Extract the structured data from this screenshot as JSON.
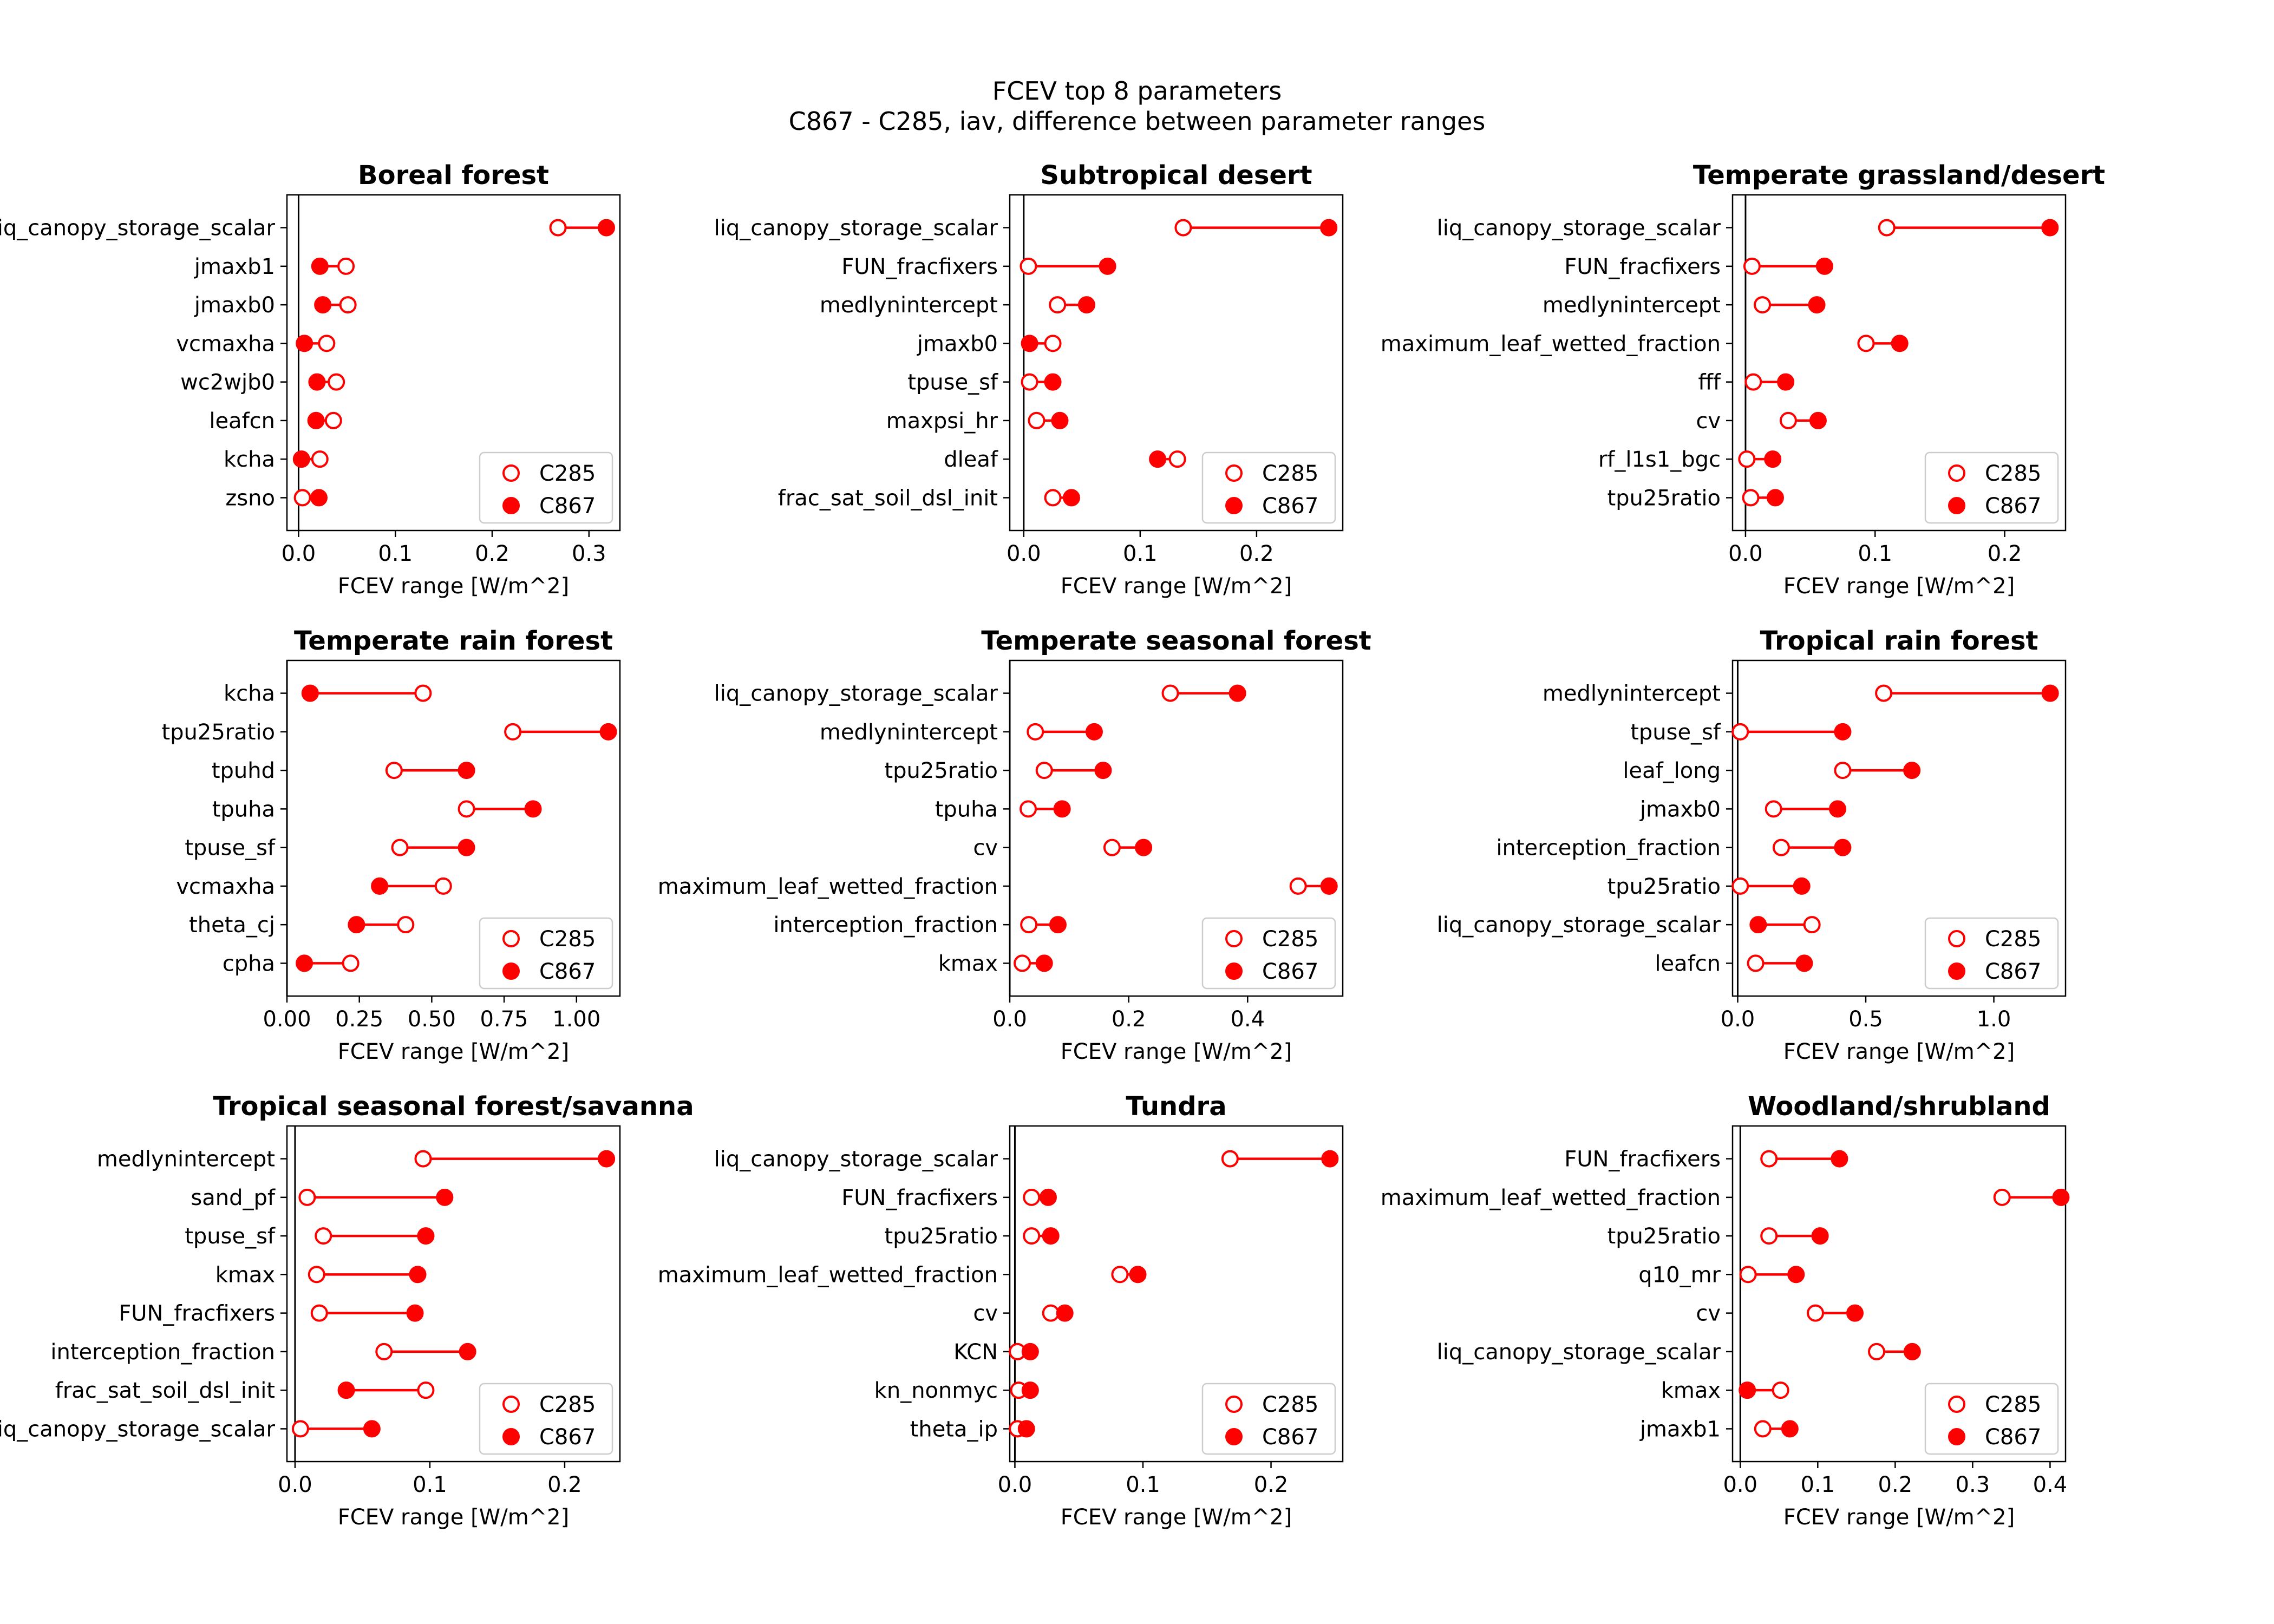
{
  "figure": {
    "title_line1": "FCEV top 8 parameters",
    "title_line2": "C867 - C285, iav, difference between parameter ranges",
    "marker_color": "#ff0000"
  },
  "chart_data": [
    {
      "type": "scatter",
      "title": "Boreal forest",
      "xlabel": "FCEV range [W/m^2]",
      "xlim": [
        -0.012,
        0.332
      ],
      "xticks": [
        0.0,
        0.1,
        0.2,
        0.3
      ],
      "xtick_labels": [
        "0.0",
        "0.1",
        "0.2",
        "0.3"
      ],
      "legend": [
        "C285",
        "C867"
      ],
      "legend_position": "lower right",
      "categories": [
        "liq_canopy_storage_scalar",
        "jmaxb1",
        "jmaxb0",
        "vcmaxha",
        "wc2wjb0",
        "leafcn",
        "kcha",
        "zsno"
      ],
      "series": [
        {
          "name": "C285",
          "values": [
            0.268,
            0.049,
            0.051,
            0.029,
            0.039,
            0.036,
            0.022,
            0.004
          ]
        },
        {
          "name": "C867",
          "values": [
            0.318,
            0.022,
            0.025,
            0.006,
            0.019,
            0.018,
            0.003,
            0.021
          ]
        }
      ]
    },
    {
      "type": "scatter",
      "title": "Subtropical desert",
      "xlabel": "FCEV range [W/m^2]",
      "xlim": [
        -0.012,
        0.274
      ],
      "xticks": [
        0.0,
        0.1,
        0.2
      ],
      "xtick_labels": [
        "0.0",
        "0.1",
        "0.2"
      ],
      "legend": [
        "C285",
        "C867"
      ],
      "legend_position": "lower right",
      "categories": [
        "liq_canopy_storage_scalar",
        "FUN_fracfixers",
        "medlynintercept",
        "jmaxb0",
        "tpuse_sf",
        "maxpsi_hr",
        "dleaf",
        "frac_sat_soil_dsl_init"
      ],
      "series": [
        {
          "name": "C285",
          "values": [
            0.137,
            0.004,
            0.029,
            0.025,
            0.005,
            0.011,
            0.132,
            0.025
          ]
        },
        {
          "name": "C867",
          "values": [
            0.262,
            0.072,
            0.054,
            0.005,
            0.025,
            0.031,
            0.115,
            0.041
          ]
        }
      ]
    },
    {
      "type": "scatter",
      "title": "Temperate grassland/desert",
      "xlabel": "FCEV range [W/m^2]",
      "xlim": [
        -0.01,
        0.247
      ],
      "xticks": [
        0.0,
        0.1,
        0.2
      ],
      "xtick_labels": [
        "0.0",
        "0.1",
        "0.2"
      ],
      "legend": [
        "C285",
        "C867"
      ],
      "legend_position": "lower right",
      "categories": [
        "liq_canopy_storage_scalar",
        "FUN_fracfixers",
        "medlynintercept",
        "maximum_leaf_wetted_fraction",
        "fff",
        "cv",
        "rf_l1s1_bgc",
        "tpu25ratio"
      ],
      "series": [
        {
          "name": "C285",
          "values": [
            0.109,
            0.005,
            0.013,
            0.093,
            0.006,
            0.033,
            0.001,
            0.004
          ]
        },
        {
          "name": "C867",
          "values": [
            0.235,
            0.061,
            0.055,
            0.119,
            0.031,
            0.056,
            0.021,
            0.023
          ]
        }
      ]
    },
    {
      "type": "scatter",
      "title": "Temperate rain forest",
      "xlabel": "FCEV range [W/m^2]",
      "xlim": [
        0.0,
        1.15
      ],
      "xticks": [
        0.0,
        0.25,
        0.5,
        0.75,
        1.0
      ],
      "xtick_labels": [
        "0.00",
        "0.25",
        "0.50",
        "0.75",
        "1.00"
      ],
      "legend": [
        "C285",
        "C867"
      ],
      "legend_position": "lower right",
      "categories": [
        "kcha",
        "tpu25ratio",
        "tpuhd",
        "tpuha",
        "tpuse_sf",
        "vcmaxha",
        "theta_cj",
        "cpha"
      ],
      "series": [
        {
          "name": "C285",
          "values": [
            0.47,
            0.78,
            0.37,
            0.62,
            0.39,
            0.54,
            0.41,
            0.22
          ]
        },
        {
          "name": "C867",
          "values": [
            0.08,
            1.11,
            0.62,
            0.85,
            0.62,
            0.32,
            0.24,
            0.06
          ]
        }
      ]
    },
    {
      "type": "scatter",
      "title": "Temperate seasonal forest",
      "xlabel": "FCEV range [W/m^2]",
      "xlim": [
        0.0,
        0.56
      ],
      "xticks": [
        0.0,
        0.2,
        0.4
      ],
      "xtick_labels": [
        "0.0",
        "0.2",
        "0.4"
      ],
      "legend": [
        "C285",
        "C867"
      ],
      "legend_position": "lower right",
      "categories": [
        "liq_canopy_storage_scalar",
        "medlynintercept",
        "tpu25ratio",
        "tpuha",
        "cv",
        "maximum_leaf_wetted_fraction",
        "interception_fraction",
        "kmax"
      ],
      "series": [
        {
          "name": "C285",
          "values": [
            0.27,
            0.043,
            0.058,
            0.031,
            0.172,
            0.485,
            0.032,
            0.021
          ]
        },
        {
          "name": "C867",
          "values": [
            0.383,
            0.142,
            0.157,
            0.088,
            0.225,
            0.537,
            0.081,
            0.058
          ]
        }
      ]
    },
    {
      "type": "scatter",
      "title": "Tropical rain forest",
      "xlabel": "FCEV range [W/m^2]",
      "xlim": [
        -0.02,
        1.28
      ],
      "xticks": [
        0.0,
        0.5,
        1.0
      ],
      "xtick_labels": [
        "0.0",
        "0.5",
        "1.0"
      ],
      "legend": [
        "C285",
        "C867"
      ],
      "legend_position": "lower right",
      "categories": [
        "medlynintercept",
        "tpuse_sf",
        "leaf_long",
        "jmaxb0",
        "interception_fraction",
        "tpu25ratio",
        "liq_canopy_storage_scalar",
        "leafcn"
      ],
      "series": [
        {
          "name": "C285",
          "values": [
            0.57,
            0.01,
            0.41,
            0.14,
            0.17,
            0.01,
            0.29,
            0.07
          ]
        },
        {
          "name": "C867",
          "values": [
            1.22,
            0.41,
            0.68,
            0.39,
            0.41,
            0.25,
            0.08,
            0.26
          ]
        }
      ]
    },
    {
      "type": "scatter",
      "title": "Tropical seasonal forest/savanna",
      "xlabel": "FCEV range [W/m^2]",
      "xlim": [
        -0.006,
        0.241
      ],
      "xticks": [
        0.0,
        0.1,
        0.2
      ],
      "xtick_labels": [
        "0.0",
        "0.1",
        "0.2"
      ],
      "legend": [
        "C285",
        "C867"
      ],
      "legend_position": "lower right",
      "categories": [
        "medlynintercept",
        "sand_pf",
        "tpuse_sf",
        "kmax",
        "FUN_fracfixers",
        "interception_fraction",
        "frac_sat_soil_dsl_init",
        "liq_canopy_storage_scalar"
      ],
      "series": [
        {
          "name": "C285",
          "values": [
            0.095,
            0.009,
            0.021,
            0.016,
            0.018,
            0.066,
            0.097,
            0.004
          ]
        },
        {
          "name": "C867",
          "values": [
            0.231,
            0.111,
            0.097,
            0.091,
            0.089,
            0.128,
            0.038,
            0.057
          ]
        }
      ]
    },
    {
      "type": "scatter",
      "title": "Tundra",
      "xlabel": "FCEV range [W/m^2]",
      "xlim": [
        -0.004,
        0.256
      ],
      "xticks": [
        0.0,
        0.1,
        0.2
      ],
      "xtick_labels": [
        "0.0",
        "0.1",
        "0.2"
      ],
      "legend": [
        "C285",
        "C867"
      ],
      "legend_position": "lower right",
      "categories": [
        "liq_canopy_storage_scalar",
        "FUN_fracfixers",
        "tpu25ratio",
        "maximum_leaf_wetted_fraction",
        "cv",
        "KCN",
        "kn_nonmyc",
        "theta_ip"
      ],
      "series": [
        {
          "name": "C285",
          "values": [
            0.168,
            0.013,
            0.013,
            0.082,
            0.028,
            0.002,
            0.003,
            0.002
          ]
        },
        {
          "name": "C867",
          "values": [
            0.246,
            0.026,
            0.028,
            0.096,
            0.039,
            0.012,
            0.012,
            0.009
          ]
        }
      ]
    },
    {
      "type": "scatter",
      "title": "Woodland/shrubland",
      "xlabel": "FCEV range [W/m^2]",
      "xlim": [
        -0.01,
        0.42
      ],
      "xticks": [
        0.0,
        0.1,
        0.2,
        0.3,
        0.4
      ],
      "xtick_labels": [
        "0.0",
        "0.1",
        "0.2",
        "0.3",
        "0.4"
      ],
      "legend": [
        "C285",
        "C867"
      ],
      "legend_position": "lower right",
      "categories": [
        "FUN_fracfixers",
        "maximum_leaf_wetted_fraction",
        "tpu25ratio",
        "q10_mr",
        "cv",
        "liq_canopy_storage_scalar",
        "kmax",
        "jmaxb1"
      ],
      "series": [
        {
          "name": "C285",
          "values": [
            0.037,
            0.338,
            0.037,
            0.01,
            0.097,
            0.176,
            0.052,
            0.029
          ]
        },
        {
          "name": "C867",
          "values": [
            0.128,
            0.414,
            0.103,
            0.072,
            0.148,
            0.222,
            0.009,
            0.064
          ]
        }
      ]
    }
  ]
}
